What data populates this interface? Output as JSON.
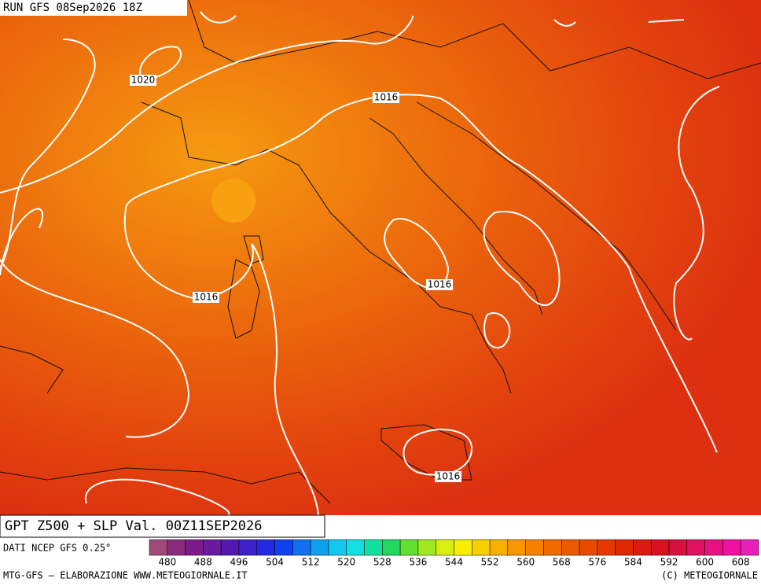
{
  "run_title": "RUN GFS 08Sep2026 18Z",
  "isobar_labels": [
    "1020",
    "1016",
    "1016",
    "1016",
    "1016"
  ],
  "map_title": "GPT Z500 + SLP Val. 00Z11SEP2026",
  "source": "DATI NCEP GFS 0.25°",
  "colorbar": {
    "labels": [
      480,
      488,
      496,
      504,
      512,
      520,
      528,
      536,
      544,
      552,
      560,
      568,
      576,
      584,
      592,
      600,
      608
    ],
    "colors": [
      "#a04a78",
      "#8c2a7e",
      "#7c1a8a",
      "#6a1a9c",
      "#5418b0",
      "#3c20c8",
      "#2428e0",
      "#1040f0",
      "#1070f0",
      "#10a0f0",
      "#10c8f0",
      "#10e0e0",
      "#10e0a0",
      "#20d860",
      "#60e030",
      "#a0e820",
      "#d8f010",
      "#f8f000",
      "#f8d000",
      "#f8b000",
      "#f89800",
      "#f88000",
      "#f06a00",
      "#ec5a00",
      "#e84a00",
      "#e43800",
      "#e02800",
      "#dc1a10",
      "#d81020",
      "#d81040",
      "#e01060",
      "#e81080",
      "#f010a0",
      "#e820b8"
    ]
  },
  "footer_left": "MTG-GFS — ELABORAZIONE WWW.METEOGIORNALE.IT",
  "footer_right": "(C) METEOGIORNALE"
}
